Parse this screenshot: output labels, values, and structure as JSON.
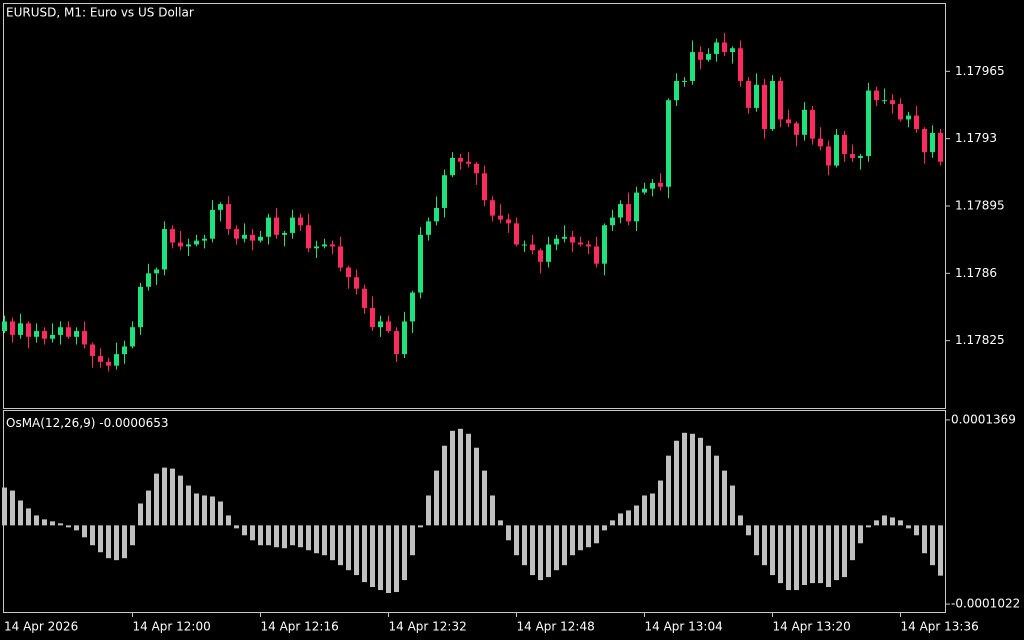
{
  "chart_data": [
    {
      "type": "candlestick",
      "title": "EURUSD, M1:  Euro vs US Dollar",
      "categories": [
        "14 Apr 2026",
        null,
        null,
        null,
        null,
        null,
        null,
        null,
        null,
        null,
        null,
        null,
        null,
        null,
        null,
        null,
        "14 Apr 12:00",
        null,
        null,
        null,
        null,
        null,
        null,
        null,
        null,
        null,
        null,
        null,
        null,
        null,
        null,
        null,
        "14 Apr 12:16",
        null,
        null,
        null,
        null,
        null,
        null,
        null,
        null,
        null,
        null,
        null,
        null,
        null,
        null,
        null,
        "14 Apr 12:32",
        null,
        null,
        null,
        null,
        null,
        null,
        null,
        null,
        null,
        null,
        null,
        null,
        null,
        null,
        null,
        "14 Apr 12:48",
        null,
        null,
        null,
        null,
        null,
        null,
        null,
        null,
        null,
        null,
        null,
        null,
        null,
        null,
        null,
        "14 Apr 13:04",
        null,
        null,
        null,
        null,
        null,
        null,
        null,
        null,
        null,
        null,
        null,
        null,
        null,
        null,
        null,
        "14 Apr 13:20",
        null,
        null,
        null,
        null,
        null,
        null,
        null,
        null,
        null,
        null,
        null,
        null,
        null,
        null,
        null,
        "14 Apr 13:36",
        null,
        null,
        null,
        null,
        null
      ],
      "open": [
        1.1783,
        1.17835,
        1.17828,
        1.17834,
        1.17827,
        1.1783,
        1.17826,
        1.17828,
        1.17832,
        1.17827,
        1.1783,
        1.17823,
        1.17817,
        1.17814,
        1.17812,
        1.17818,
        1.17822,
        1.17832,
        1.17853,
        1.1786,
        1.17862,
        1.17883,
        1.17876,
        1.17874,
        1.17875,
        1.17877,
        1.17878,
        1.17893,
        1.17896,
        1.17883,
        1.17878,
        1.1788,
        1.17877,
        1.17879,
        1.17889,
        1.1788,
        1.17881,
        1.17889,
        1.17885,
        1.17873,
        1.17874,
        1.17875,
        1.17874,
        1.17863,
        1.17858,
        1.17852,
        1.17842,
        1.17832,
        1.17835,
        1.1783,
        1.17818,
        1.17835,
        1.1785,
        1.1788,
        1.17887,
        1.17894,
        1.17911,
        1.1792,
        1.17918,
        1.17917,
        1.17912,
        1.17898,
        1.1789,
        1.17888,
        1.17886,
        1.17875,
        1.17875,
        1.17872,
        1.17866,
        1.17875,
        1.17878,
        1.17879,
        1.17876,
        1.17875,
        1.17874,
        1.17865,
        1.17885,
        1.17889,
        1.17896,
        1.17887,
        1.17902,
        1.17904,
        1.17907,
        1.17905,
        1.1795,
        1.1796,
        1.1796,
        1.17975,
        1.17971,
        1.17974,
        1.1798,
        1.17975,
        1.17977,
        1.1796,
        1.17946,
        1.17958,
        1.17935,
        1.1796,
        1.1794,
        1.17938,
        1.17932,
        1.17945,
        1.1793,
        1.17926,
        1.17916,
        1.17932,
        1.17922,
        1.1792,
        1.17921,
        1.17955,
        1.1795,
        1.1795,
        1.17948,
        1.1794,
        1.17942,
        1.17935,
        1.17923,
        1.17933
      ],
      "high": [
        1.17838,
        1.17837,
        1.17839,
        1.17835,
        1.17834,
        1.17832,
        1.17834,
        1.17835,
        1.17835,
        1.17832,
        1.17835,
        1.17824,
        1.17821,
        1.17816,
        1.17824,
        1.17825,
        1.17835,
        1.17855,
        1.17865,
        1.17863,
        1.17887,
        1.17885,
        1.17882,
        1.17878,
        1.1788,
        1.1788,
        1.17898,
        1.17897,
        1.179,
        1.17885,
        1.17886,
        1.17883,
        1.17882,
        1.17891,
        1.17894,
        1.17882,
        1.17893,
        1.17891,
        1.17891,
        1.17877,
        1.17878,
        1.17877,
        1.17879,
        1.17864,
        1.17862,
        1.17854,
        1.17848,
        1.17838,
        1.17838,
        1.17832,
        1.1784,
        1.17851,
        1.17884,
        1.17889,
        1.179,
        1.17914,
        1.17923,
        1.17922,
        1.17923,
        1.17918,
        1.17916,
        1.179,
        1.17896,
        1.17891,
        1.17889,
        1.17877,
        1.1788,
        1.17873,
        1.17879,
        1.1788,
        1.17885,
        1.17882,
        1.17879,
        1.17877,
        1.17879,
        1.17886,
        1.17893,
        1.17898,
        1.17902,
        1.17905,
        1.17907,
        1.17909,
        1.17912,
        1.17951,
        1.17964,
        1.17962,
        1.17981,
        1.17978,
        1.17977,
        1.17982,
        1.17985,
        1.17978,
        1.17981,
        1.17962,
        1.17964,
        1.17961,
        1.17963,
        1.17962,
        1.17945,
        1.17939,
        1.17949,
        1.17947,
        1.17936,
        1.17929,
        1.17935,
        1.17934,
        1.17927,
        1.17922,
        1.17959,
        1.17957,
        1.17956,
        1.17953,
        1.17951,
        1.17944,
        1.17947,
        1.17936,
        1.17937,
        1.17935
      ],
      "low": [
        1.17829,
        1.17824,
        1.17826,
        1.17821,
        1.17824,
        1.17823,
        1.17824,
        1.17823,
        1.17826,
        1.17823,
        1.17821,
        1.17811,
        1.17811,
        1.17809,
        1.1781,
        1.17813,
        1.17821,
        1.17828,
        1.17851,
        1.17854,
        1.17859,
        1.17873,
        1.17872,
        1.17869,
        1.17874,
        1.17873,
        1.17876,
        1.17887,
        1.1788,
        1.17875,
        1.17876,
        1.17872,
        1.17876,
        1.17875,
        1.17878,
        1.17874,
        1.17878,
        1.17882,
        1.17871,
        1.17868,
        1.17873,
        1.1787,
        1.17861,
        1.17852,
        1.17849,
        1.17839,
        1.1783,
        1.17827,
        1.17829,
        1.17814,
        1.17816,
        1.17829,
        1.17847,
        1.17877,
        1.17885,
        1.17889,
        1.1791,
        1.17914,
        1.17915,
        1.17906,
        1.17895,
        1.17887,
        1.17886,
        1.17881,
        1.17874,
        1.17871,
        1.1787,
        1.1786,
        1.17863,
        1.17872,
        1.17876,
        1.17871,
        1.17874,
        1.1787,
        1.17863,
        1.17859,
        1.17882,
        1.17886,
        1.17885,
        1.17882,
        1.17901,
        1.179,
        1.17903,
        1.17899,
        1.17947,
        1.17957,
        1.17958,
        1.17966,
        1.1797,
        1.1797,
        1.17973,
        1.17969,
        1.17957,
        1.17943,
        1.17944,
        1.1793,
        1.17934,
        1.17936,
        1.17936,
        1.17926,
        1.17929,
        1.17927,
        1.17924,
        1.17911,
        1.17915,
        1.17918,
        1.17918,
        1.17914,
        1.17918,
        1.17947,
        1.17948,
        1.17943,
        1.17939,
        1.17936,
        1.17933,
        1.17917,
        1.1792,
        1.17916
      ],
      "close": [
        1.17835,
        1.17828,
        1.17834,
        1.17827,
        1.1783,
        1.17826,
        1.17828,
        1.17832,
        1.17827,
        1.1783,
        1.17823,
        1.17817,
        1.17814,
        1.17812,
        1.17818,
        1.17822,
        1.17832,
        1.17853,
        1.1786,
        1.17862,
        1.17883,
        1.17876,
        1.17874,
        1.17875,
        1.17877,
        1.17878,
        1.17893,
        1.17896,
        1.17883,
        1.17878,
        1.1788,
        1.17877,
        1.17879,
        1.17889,
        1.1788,
        1.17881,
        1.17889,
        1.17885,
        1.17873,
        1.17874,
        1.17875,
        1.17874,
        1.17863,
        1.17858,
        1.17852,
        1.17842,
        1.17832,
        1.17835,
        1.1783,
        1.17818,
        1.17835,
        1.1785,
        1.1788,
        1.17887,
        1.17894,
        1.17911,
        1.1792,
        1.17918,
        1.17917,
        1.17912,
        1.17898,
        1.1789,
        1.17888,
        1.17886,
        1.17875,
        1.17875,
        1.17872,
        1.17866,
        1.17875,
        1.17878,
        1.17879,
        1.17876,
        1.17875,
        1.17874,
        1.17865,
        1.17885,
        1.17889,
        1.17896,
        1.17887,
        1.17902,
        1.17904,
        1.17907,
        1.17905,
        1.1795,
        1.1796,
        1.1796,
        1.17975,
        1.17971,
        1.17974,
        1.1798,
        1.17975,
        1.17977,
        1.1796,
        1.17946,
        1.17958,
        1.17935,
        1.1796,
        1.1794,
        1.17938,
        1.17932,
        1.17945,
        1.1793,
        1.17926,
        1.17916,
        1.17932,
        1.17922,
        1.1792,
        1.17921,
        1.17955,
        1.1795,
        1.1795,
        1.17948,
        1.1794,
        1.17942,
        1.17935,
        1.17923,
        1.17933,
        1.17918
      ],
      "up_color": "#1ee37c",
      "down_color": "#ff2a5f",
      "ylim": [
        1.1779,
        1.18
      ],
      "yticks": [
        1.17965,
        1.1793,
        1.17895,
        1.1786,
        1.17825
      ]
    },
    {
      "type": "bar",
      "title": "OsMA(12,26,9)",
      "color": "#c0c0c0",
      "values": [
        4.91e-05,
        4.52e-05,
        3.23e-05,
        2.2e-05,
        1.29e-05,
        7.8e-06,
        5.2e-06,
        2.6e-06,
        -2.6e-06,
        -6.5e-06,
        -1.55e-05,
        -2.58e-05,
        -3.49e-05,
        -4.26e-05,
        -4.52e-05,
        -4.26e-05,
        -2.58e-05,
        2.84e-05,
        4.52e-05,
        6.72e-05,
        7.5e-05,
        7.37e-05,
        6.46e-05,
        5.17e-05,
        4.14e-05,
        3.88e-05,
        3.75e-05,
        3.1e-05,
        1.29e-05,
        -3.9e-06,
        -1.29e-05,
        -1.94e-05,
        -2.58e-05,
        -2.58e-05,
        -2.84e-05,
        -2.97e-05,
        -2.58e-05,
        -2.84e-05,
        -3.23e-05,
        -3.62e-05,
        -3.88e-05,
        -4.52e-05,
        -5.17e-05,
        -5.82e-05,
        -6.46e-05,
        -7.37e-05,
        -8.01e-05,
        -8.4e-05,
        -8.79e-05,
        -8.66e-05,
        -7.11e-05,
        -3.88e-05,
        -2.6e-06,
        3.88e-05,
        7.11e-05,
        0.0001034,
        0.0001228,
        0.0001254,
        0.0001189,
        0.0001008,
        7.11e-05,
        3.88e-05,
        6.5e-06,
        -1.94e-05,
        -3.88e-05,
        -5.17e-05,
        -6.46e-05,
        -7.11e-05,
        -6.72e-05,
        -5.82e-05,
        -5.17e-05,
        -3.88e-05,
        -3.23e-05,
        -2.84e-05,
        -2.33e-05,
        -6.5e-06,
        6.5e-06,
        1.55e-05,
        1.94e-05,
        2.58e-05,
        3.88e-05,
        4.14e-05,
        5.82e-05,
        9.05e-05,
        0.0001099,
        0.0001202,
        0.0001189,
        0.0001137,
        0.0001034,
        9.05e-05,
        7.11e-05,
        5.17e-05,
        1.29e-05,
        -1.29e-05,
        -3.88e-05,
        -5.17e-05,
        -6.46e-05,
        -7.5e-05,
        -8.4e-05,
        -8.4e-05,
        -7.75e-05,
        -7.5e-05,
        -7.5e-05,
        -8.01e-05,
        -7.11e-05,
        -6.72e-05,
        -4.52e-05,
        -2.33e-05,
        -2.6e-06,
        6.5e-06,
        1.29e-05,
        1.03e-05,
        6.5e-06,
        -3.9e-06,
        -1.29e-05,
        -3.62e-05,
        -5.17e-05,
        -6.53e-05
      ],
      "ylim": [
        -0.0001125,
        0.0001485
      ],
      "yticks": [
        0.0001369,
        -0.0001022
      ]
    }
  ]
}
